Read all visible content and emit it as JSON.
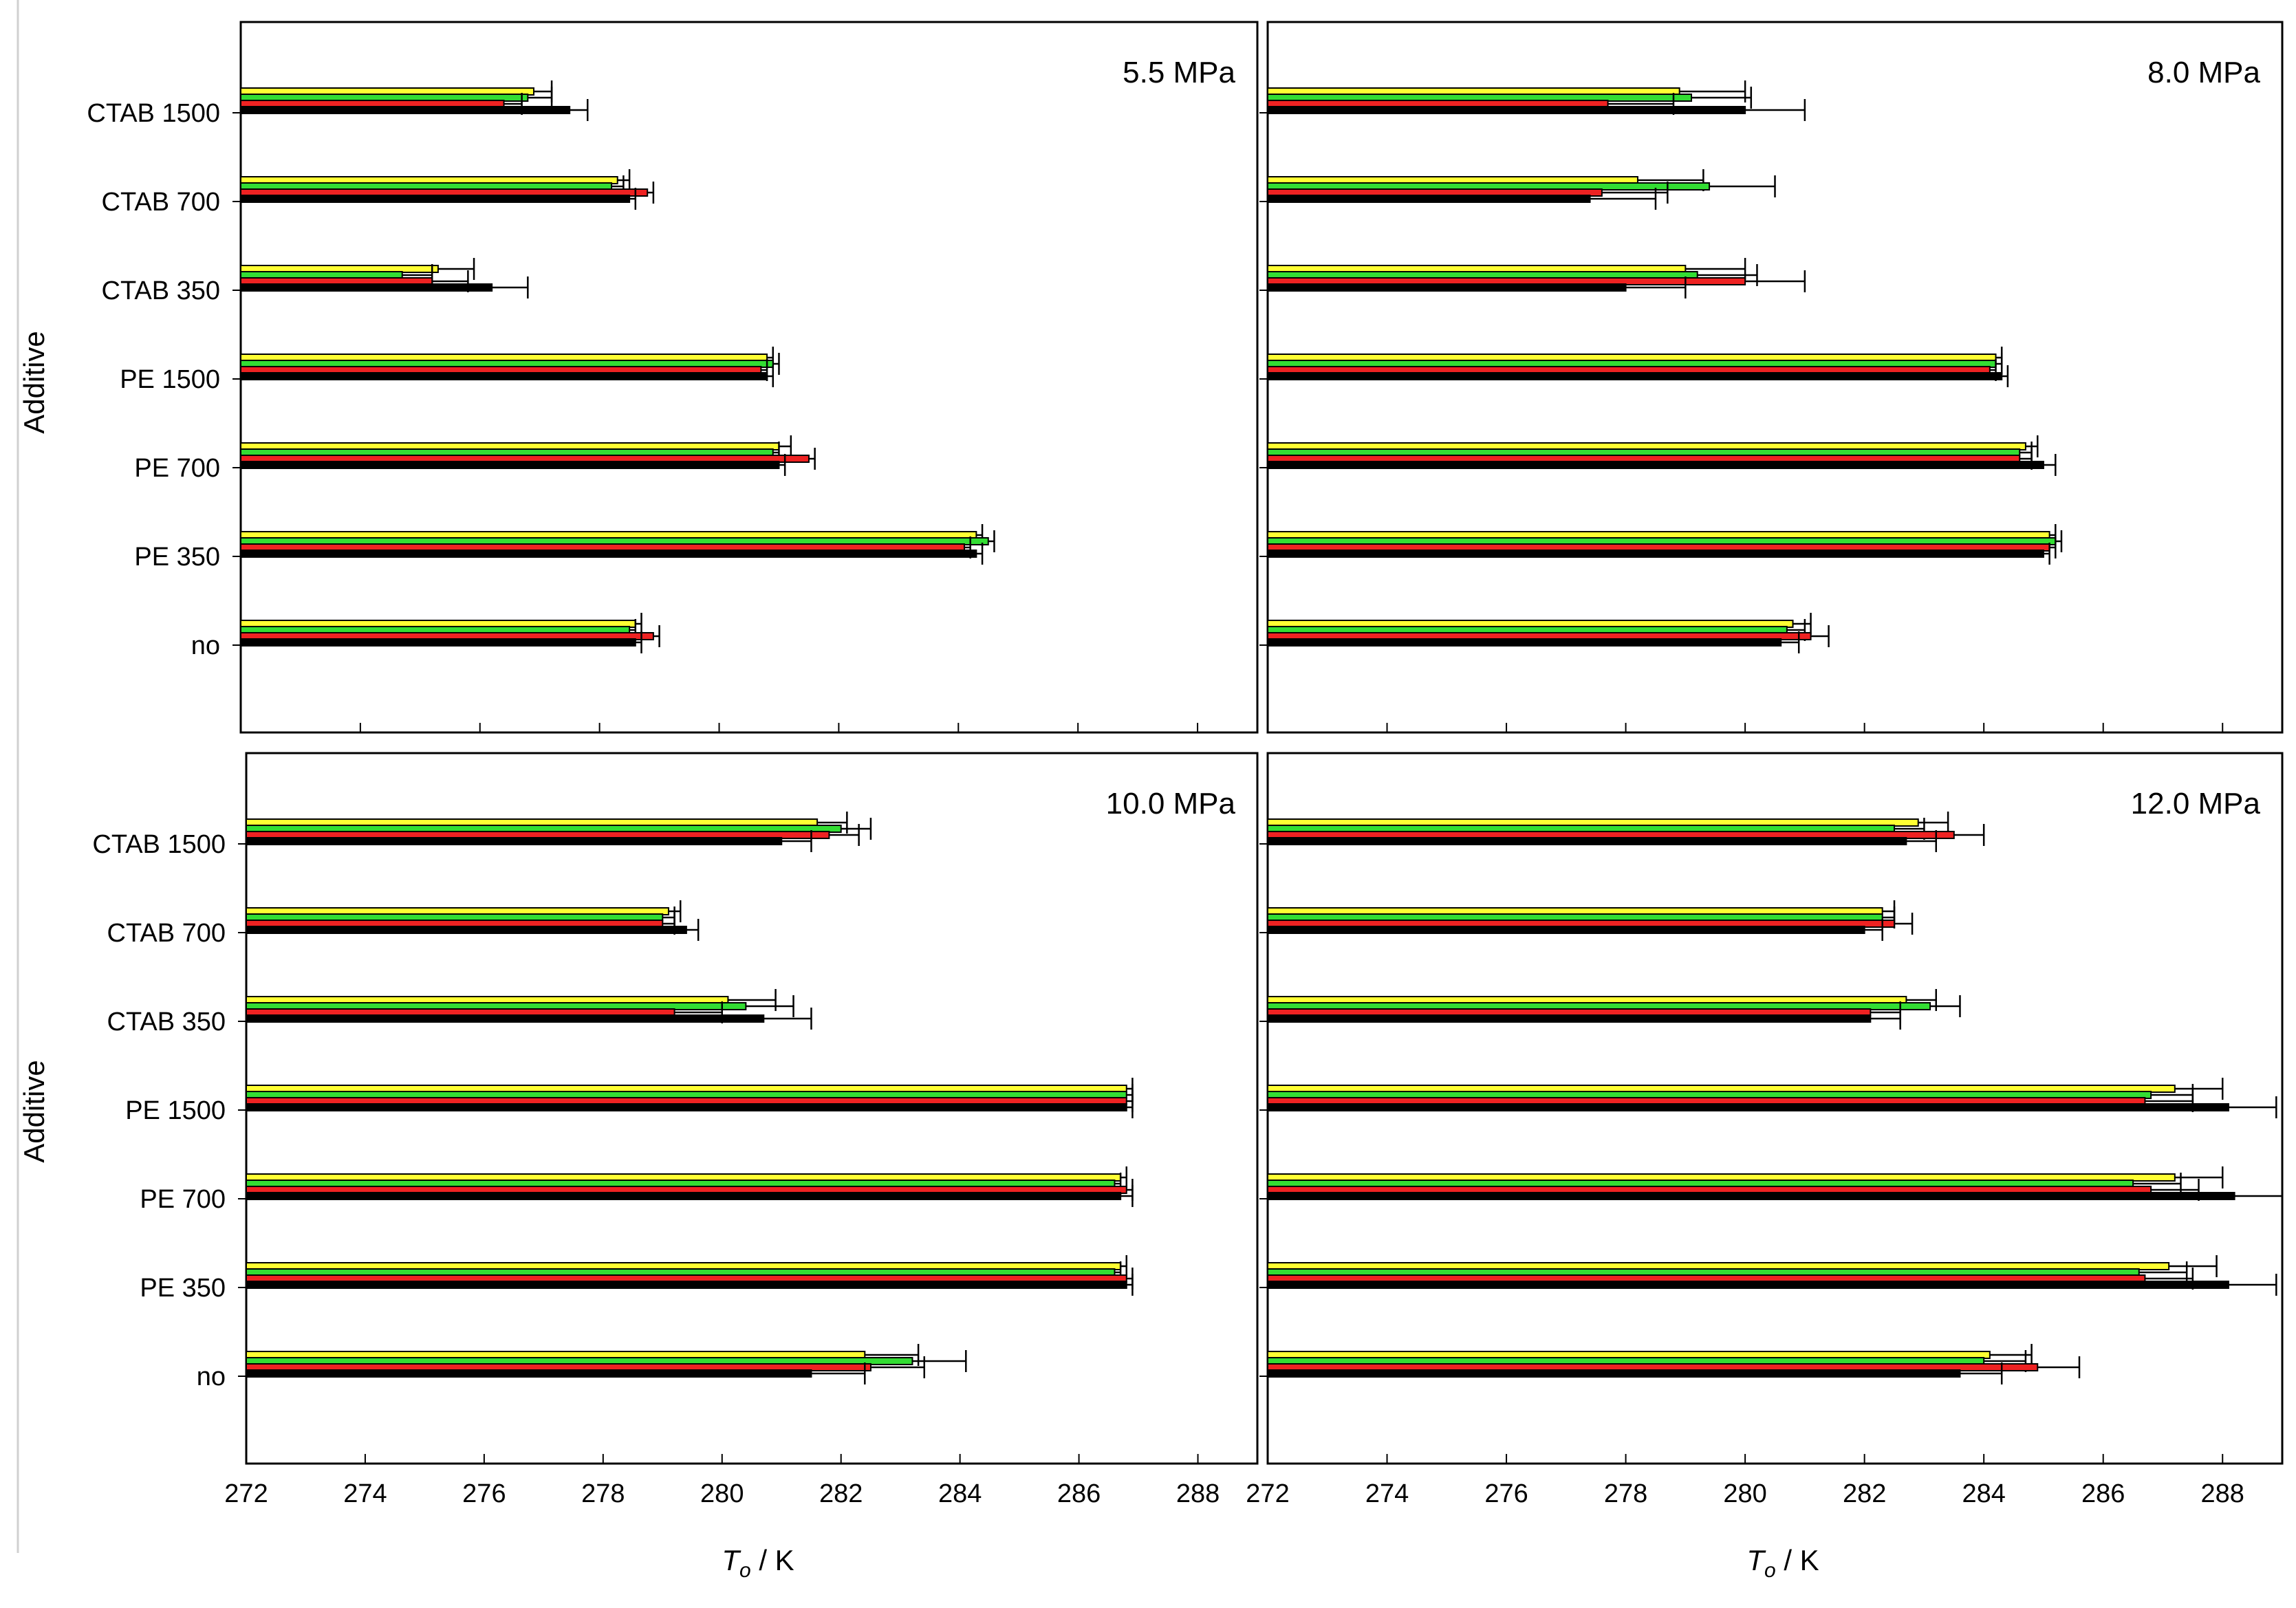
{
  "figure": {
    "ylabel": "Additive",
    "xlabel_main": "T",
    "xlabel_sub": "o",
    "xlabel_unit": " / K",
    "categories": [
      "CTAB 1500",
      "CTAB 700",
      "CTAB 350",
      "PE 1500",
      "PE 700",
      "PE 350",
      "no"
    ],
    "x_ticks": [
      "272",
      "274",
      "276",
      "278",
      "280",
      "282",
      "284",
      "286",
      "288"
    ],
    "colors": {
      "series1": "#ffff33",
      "series2": "#33dd33",
      "series3": "#ee2222",
      "series4": "#000000"
    }
  },
  "chart_data": [
    {
      "type": "bar",
      "orientation": "horizontal",
      "title": "5.5 MPa",
      "xlabel": "T_o / K",
      "ylabel": "Additive",
      "xlim": [
        272,
        289
      ],
      "categories": [
        "CTAB 1500",
        "CTAB 700",
        "CTAB 350",
        "PE 1500",
        "PE 700",
        "PE 350",
        "no"
      ],
      "series": [
        {
          "name": "series1",
          "values": [
            276.9,
            278.3,
            275.3,
            280.8,
            281.0,
            284.3,
            278.6
          ],
          "errors": [
            0.3,
            0.2,
            0.6,
            0.1,
            0.2,
            0.1,
            0.1
          ]
        },
        {
          "name": "series2",
          "values": [
            276.8,
            278.2,
            274.7,
            280.9,
            280.9,
            284.5,
            278.5
          ],
          "errors": [
            0.4,
            0.2,
            0.5,
            0.1,
            0.1,
            0.1,
            0.1
          ]
        },
        {
          "name": "series3",
          "values": [
            276.4,
            278.8,
            275.2,
            280.7,
            281.5,
            284.1,
            278.9
          ],
          "errors": [
            0.3,
            0.1,
            0.6,
            0.1,
            0.1,
            0.1,
            0.1
          ]
        },
        {
          "name": "series4",
          "values": [
            277.5,
            278.5,
            276.2,
            280.8,
            281.0,
            284.3,
            278.6
          ],
          "errors": [
            0.3,
            0.1,
            0.6,
            0.1,
            0.1,
            0.1,
            0.1
          ]
        }
      ]
    },
    {
      "type": "bar",
      "orientation": "horizontal",
      "title": "8.0 MPa",
      "xlabel": "T_o / K",
      "ylabel": "Additive",
      "xlim": [
        272,
        289
      ],
      "categories": [
        "CTAB 1500",
        "CTAB 700",
        "CTAB 350",
        "PE 1500",
        "PE 700",
        "PE 350",
        "no"
      ],
      "series": [
        {
          "name": "series1",
          "values": [
            278.9,
            278.2,
            279.0,
            284.2,
            284.7,
            285.1,
            280.8
          ],
          "errors": [
            1.1,
            1.1,
            1.0,
            0.1,
            0.2,
            0.1,
            0.3
          ]
        },
        {
          "name": "series2",
          "values": [
            279.1,
            279.4,
            279.2,
            284.2,
            284.6,
            285.2,
            280.7
          ],
          "errors": [
            1.0,
            1.1,
            1.0,
            0.1,
            0.2,
            0.1,
            0.3
          ]
        },
        {
          "name": "series3",
          "values": [
            277.7,
            277.6,
            280.0,
            284.1,
            284.6,
            285.1,
            281.1
          ],
          "errors": [
            1.1,
            1.1,
            1.0,
            0.1,
            0.2,
            0.1,
            0.3
          ]
        },
        {
          "name": "series4",
          "values": [
            280.0,
            277.4,
            278.0,
            284.3,
            285.0,
            285.0,
            280.6
          ],
          "errors": [
            1.0,
            1.1,
            1.0,
            0.1,
            0.2,
            0.1,
            0.3
          ]
        }
      ]
    },
    {
      "type": "bar",
      "orientation": "horizontal",
      "title": "10.0 MPa",
      "xlabel": "T_o / K",
      "ylabel": "Additive",
      "xlim": [
        272,
        289
      ],
      "categories": [
        "CTAB 1500",
        "CTAB 700",
        "CTAB 350",
        "PE 1500",
        "PE 700",
        "PE 350",
        "no"
      ],
      "series": [
        {
          "name": "series1",
          "values": [
            281.6,
            279.1,
            280.1,
            286.8,
            286.7,
            286.7,
            282.4
          ],
          "errors": [
            0.5,
            0.2,
            0.8,
            0.1,
            0.1,
            0.1,
            0.9
          ]
        },
        {
          "name": "series2",
          "values": [
            282.0,
            279.0,
            280.4,
            286.8,
            286.6,
            286.6,
            283.2
          ],
          "errors": [
            0.5,
            0.2,
            0.8,
            0.1,
            0.1,
            0.1,
            0.9
          ]
        },
        {
          "name": "series3",
          "values": [
            281.8,
            279.0,
            279.2,
            286.8,
            286.8,
            286.8,
            282.5
          ],
          "errors": [
            0.5,
            0.2,
            0.8,
            0.1,
            0.1,
            0.1,
            0.9
          ]
        },
        {
          "name": "series4",
          "values": [
            281.0,
            279.4,
            280.7,
            286.8,
            286.7,
            286.8,
            281.5
          ],
          "errors": [
            0.5,
            0.2,
            0.8,
            0.1,
            0.2,
            0.1,
            0.9
          ]
        }
      ]
    },
    {
      "type": "bar",
      "orientation": "horizontal",
      "title": "12.0 MPa",
      "xlabel": "T_o / K",
      "ylabel": "Additive",
      "xlim": [
        272,
        289
      ],
      "categories": [
        "CTAB 1500",
        "CTAB 700",
        "CTAB 350",
        "PE 1500",
        "PE 700",
        "PE 350",
        "no"
      ],
      "series": [
        {
          "name": "series1",
          "values": [
            282.9,
            282.3,
            282.7,
            287.2,
            287.2,
            287.1,
            284.1
          ],
          "errors": [
            0.5,
            0.2,
            0.5,
            0.8,
            0.8,
            0.8,
            0.7
          ]
        },
        {
          "name": "series2",
          "values": [
            282.5,
            282.3,
            283.1,
            286.8,
            286.5,
            286.6,
            284.0
          ],
          "errors": [
            0.5,
            0.2,
            0.5,
            0.7,
            0.8,
            0.8,
            0.7
          ]
        },
        {
          "name": "series3",
          "values": [
            283.5,
            282.5,
            282.1,
            286.7,
            286.8,
            286.7,
            284.9
          ],
          "errors": [
            0.5,
            0.3,
            0.5,
            0.8,
            0.8,
            0.8,
            0.7
          ]
        },
        {
          "name": "series4",
          "values": [
            282.7,
            282.0,
            282.1,
            288.1,
            288.2,
            288.1,
            283.6
          ],
          "errors": [
            0.5,
            0.3,
            0.5,
            0.8,
            0.8,
            0.8,
            0.7
          ]
        }
      ]
    }
  ]
}
